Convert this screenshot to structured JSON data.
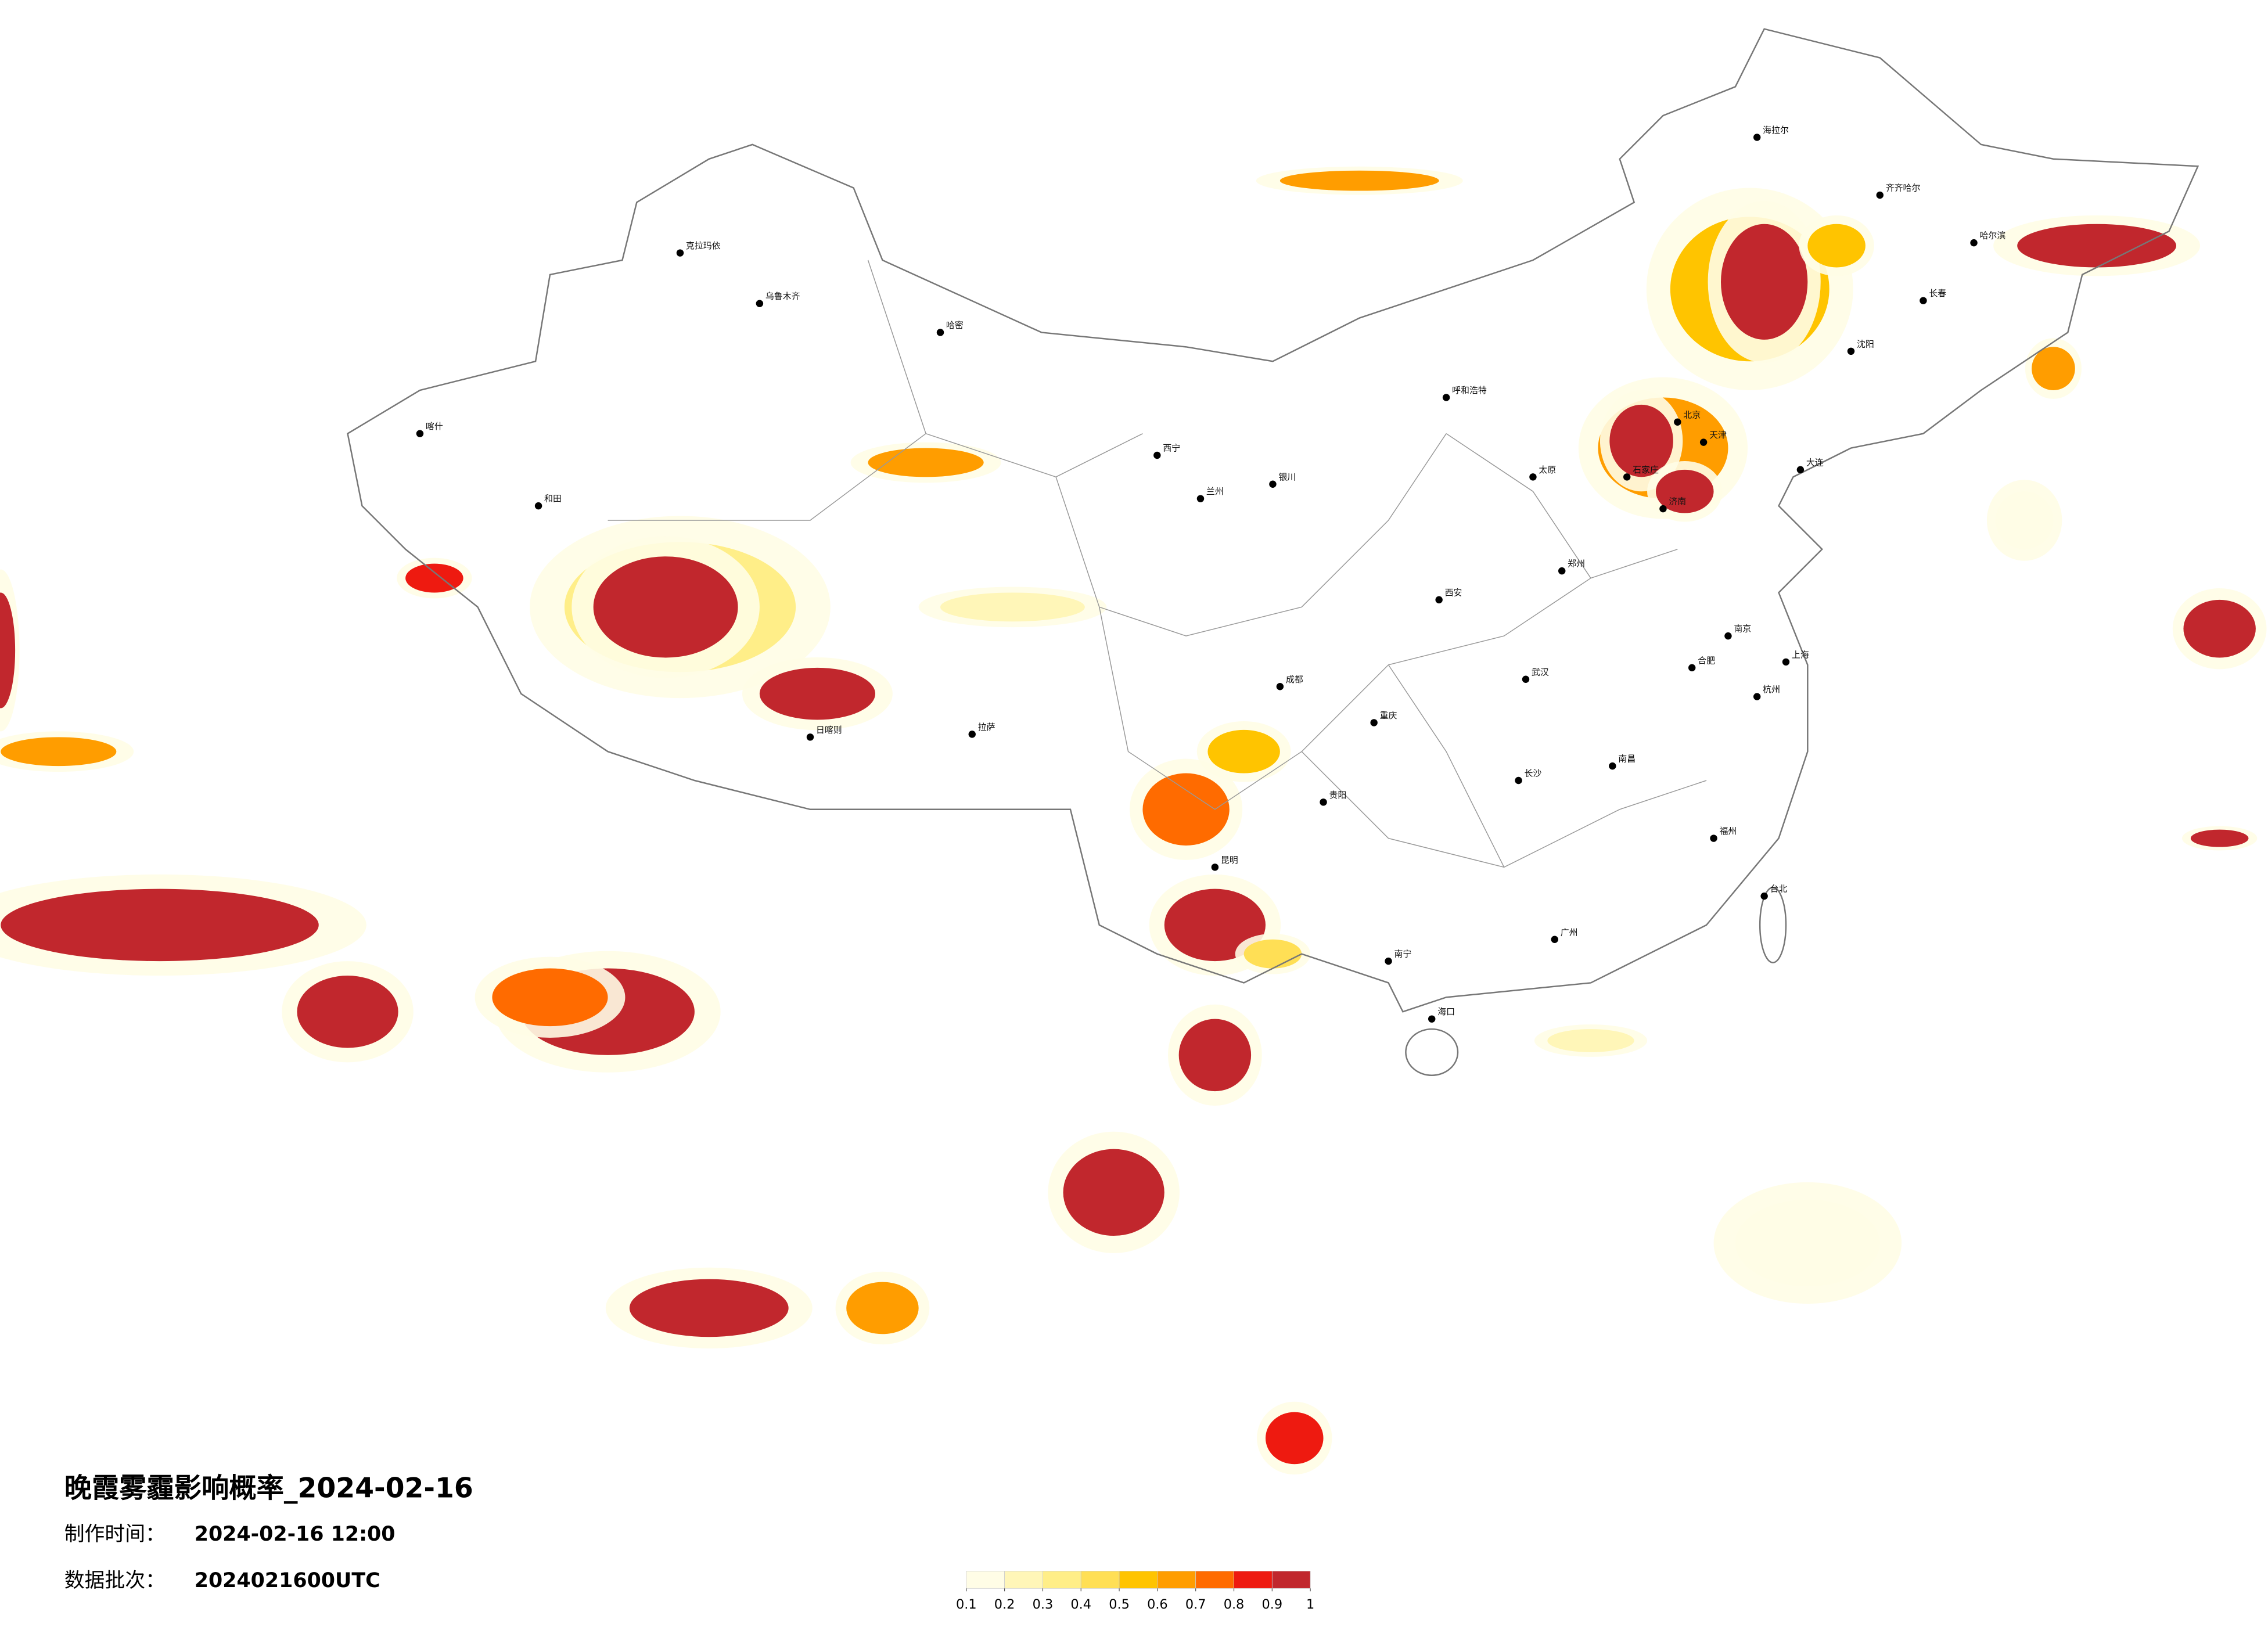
{
  "header": {
    "title": "晚霞雾霾影响概率_2024-02-16",
    "made_time_label": "制作时间：",
    "made_time": "2024-02-16 12:00",
    "batch_label": "数据批次：",
    "batch": "2024021600UTC"
  },
  "legend": {
    "ticks": [
      0.1,
      0.2,
      0.3,
      0.4,
      0.5,
      0.6,
      0.7,
      0.8,
      0.9,
      1
    ],
    "colors": [
      "#fffde6",
      "#fff6b8",
      "#ffee88",
      "#ffdf55",
      "#ffc400",
      "#ff9d00",
      "#ff6b00",
      "#ee1a10",
      "#c1272d"
    ]
  },
  "map": {
    "cities": [
      "克拉玛依",
      "乌鲁木齐",
      "哈密",
      "喀什",
      "和田",
      "拉萨",
      "日喀则",
      "西宁",
      "兰州",
      "银川",
      "呼和浩特",
      "北京",
      "天津",
      "石家庄",
      "太原",
      "济南",
      "郑州",
      "西安",
      "成都",
      "重庆",
      "武汉",
      "南京",
      "上海",
      "杭州",
      "合肥",
      "长沙",
      "南昌",
      "福州",
      "广州",
      "南宁",
      "昆明",
      "贵阳",
      "海口",
      "台北",
      "沈阳",
      "长春",
      "哈尔滨",
      "海拉尔",
      "齐齐哈尔",
      "大连"
    ]
  }
}
